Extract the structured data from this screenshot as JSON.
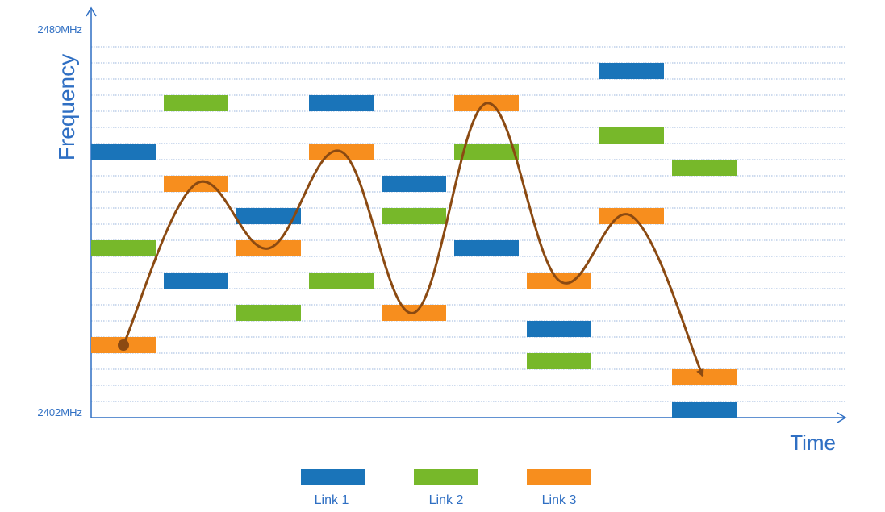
{
  "y_axis": {
    "label": "Frequency",
    "top_tick": "2480MHz",
    "bottom_tick": "2402MHz",
    "channel_count": 23
  },
  "x_axis": {
    "label": "Time",
    "slot_count": 9
  },
  "colors": {
    "link1": "#1a74b9",
    "link2": "#77b82a",
    "link3": "#f78e1e",
    "axis": "#2f6fc3",
    "grid": "#9db7de",
    "hop_curve": "#8b4a12"
  },
  "legend": [
    {
      "key": "link1",
      "label": "Link 1"
    },
    {
      "key": "link2",
      "label": "Link 2"
    },
    {
      "key": "link3",
      "label": "Link 3"
    }
  ],
  "hops": {
    "link1": [
      [
        0,
        16
      ],
      [
        1,
        8
      ],
      [
        2,
        12
      ],
      [
        3,
        19
      ],
      [
        4,
        14
      ],
      [
        5,
        10
      ],
      [
        6,
        5
      ],
      [
        7,
        21
      ],
      [
        8,
        0
      ]
    ],
    "link2": [
      [
        0,
        10
      ],
      [
        1,
        19
      ],
      [
        2,
        6
      ],
      [
        3,
        8
      ],
      [
        4,
        12
      ],
      [
        5,
        16
      ],
      [
        6,
        3
      ],
      [
        7,
        17
      ],
      [
        8,
        15
      ]
    ],
    "link3": [
      [
        0,
        4
      ],
      [
        1,
        14
      ],
      [
        2,
        10
      ],
      [
        3,
        16
      ],
      [
        4,
        6
      ],
      [
        5,
        19
      ],
      [
        6,
        8
      ],
      [
        7,
        12
      ],
      [
        8,
        2
      ]
    ]
  },
  "hop_path_link": "link3"
}
